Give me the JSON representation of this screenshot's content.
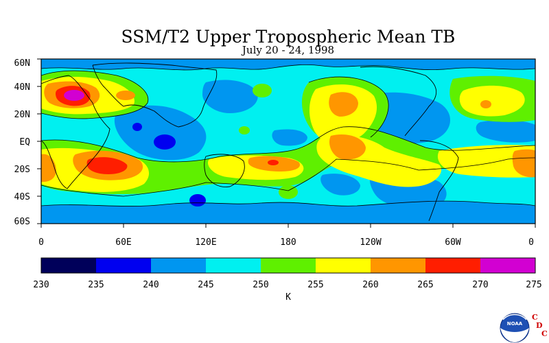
{
  "title": "SSM/T2 Upper Tropospheric Mean TB",
  "subtitle": "July 20 - 24, 1998",
  "map": {
    "lat_labels": [
      "60N",
      "40N",
      "20N",
      "EQ",
      "20S",
      "40S",
      "60S"
    ],
    "lon_labels": [
      "0",
      "60E",
      "120E",
      "180",
      "120W",
      "60W",
      "0"
    ],
    "lat_range": [
      -60,
      60
    ],
    "lon_range": [
      0,
      360
    ]
  },
  "colorbar": {
    "ticks": [
      "230",
      "235",
      "240",
      "245",
      "250",
      "255",
      "260",
      "265",
      "270",
      "275"
    ],
    "colors": [
      "#00005a",
      "#0000f0",
      "#0096f0",
      "#00f0f0",
      "#5ff000",
      "#ffff00",
      "#ff9600",
      "#ff1e00",
      "#d200d2"
    ],
    "unit": "K"
  },
  "logo": {
    "text": "NOAA",
    "letters": [
      "C",
      "D",
      "C"
    ]
  }
}
